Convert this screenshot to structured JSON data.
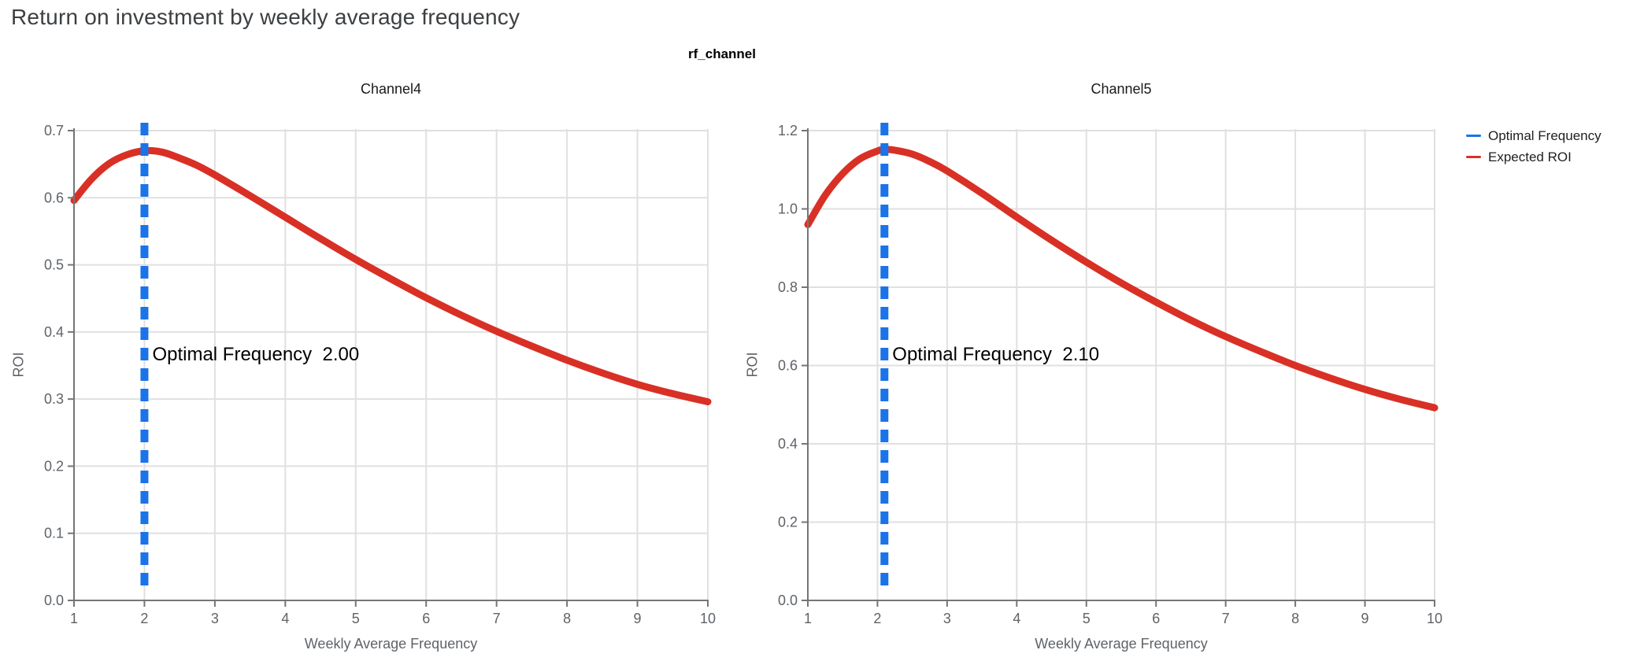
{
  "page_title": "Return on investment by weekly average frequency",
  "facet_title": "rf_channel",
  "colors": {
    "optimal_frequency_line": "#1a73e8",
    "expected_roi_line": "#d93025",
    "gridline": "#e0e0e0",
    "axis_line": "#757575",
    "tick_label": "#5f6368",
    "page_title": "#3c4043",
    "annotation_text": "#000000"
  },
  "legend": {
    "position": "right",
    "items": [
      {
        "label": "Optimal Frequency",
        "color": "#1a73e8"
      },
      {
        "label": "Expected ROI",
        "color": "#d93025"
      }
    ]
  },
  "chart_data": [
    {
      "type": "line",
      "title": "Channel4",
      "xlabel": "Weekly Average Frequency",
      "ylabel": "ROI",
      "xlim": [
        1,
        10
      ],
      "ylim": [
        0,
        0.7
      ],
      "grid": true,
      "xticks": {
        "values": [
          1,
          2,
          3,
          4,
          5,
          6,
          7,
          8,
          9,
          10
        ],
        "labels": [
          "1",
          "2",
          "3",
          "4",
          "5",
          "6",
          "7",
          "8",
          "9",
          "10"
        ]
      },
      "yticks": {
        "values": [
          0,
          0.1,
          0.2,
          0.3,
          0.4,
          0.5,
          0.6,
          0.7
        ],
        "labels": [
          "0.0",
          "0.1",
          "0.2",
          "0.3",
          "0.4",
          "0.5",
          "0.6",
          "0.7"
        ]
      },
      "optimal_frequency": 2.0,
      "annotation": "Optimal Frequency  2.00",
      "series": [
        {
          "name": "Expected ROI",
          "color": "#d93025",
          "x": [
            1,
            1.25,
            1.5,
            1.75,
            2,
            2.25,
            2.5,
            2.75,
            3,
            3.5,
            4,
            4.5,
            5,
            5.5,
            6,
            6.5,
            7,
            7.5,
            8,
            8.5,
            9,
            9.5,
            10
          ],
          "y": [
            0.596,
            0.628,
            0.651,
            0.664,
            0.67,
            0.668,
            0.659,
            0.648,
            0.634,
            0.603,
            0.571,
            0.539,
            0.508,
            0.479,
            0.451,
            0.425,
            0.401,
            0.379,
            0.358,
            0.339,
            0.322,
            0.308,
            0.296
          ]
        }
      ]
    },
    {
      "type": "line",
      "title": "Channel5",
      "xlabel": "Weekly Average Frequency",
      "ylabel": "ROI",
      "xlim": [
        1,
        10
      ],
      "ylim": [
        0,
        1.2
      ],
      "grid": true,
      "xticks": {
        "values": [
          1,
          2,
          3,
          4,
          5,
          6,
          7,
          8,
          9,
          10
        ],
        "labels": [
          "1",
          "2",
          "3",
          "4",
          "5",
          "6",
          "7",
          "8",
          "9",
          "10"
        ]
      },
      "yticks": {
        "values": [
          0,
          0.2,
          0.4,
          0.6,
          0.8,
          1.0,
          1.2
        ],
        "labels": [
          "0.0",
          "0.2",
          "0.4",
          "0.6",
          "0.8",
          "1.0",
          "1.2"
        ]
      },
      "optimal_frequency": 2.1,
      "annotation": "Optimal Frequency  2.10",
      "series": [
        {
          "name": "Expected ROI",
          "color": "#d93025",
          "x": [
            1,
            1.25,
            1.5,
            1.75,
            2,
            2.1,
            2.25,
            2.5,
            2.75,
            3,
            3.5,
            4,
            4.5,
            5,
            5.5,
            6,
            6.5,
            7,
            7.5,
            8,
            8.5,
            9,
            9.5,
            10
          ],
          "y": [
            0.96,
            1.035,
            1.09,
            1.128,
            1.148,
            1.152,
            1.15,
            1.14,
            1.121,
            1.097,
            1.04,
            0.979,
            0.92,
            0.864,
            0.811,
            0.762,
            0.716,
            0.674,
            0.636,
            0.6,
            0.568,
            0.539,
            0.514,
            0.492
          ]
        }
      ]
    }
  ]
}
